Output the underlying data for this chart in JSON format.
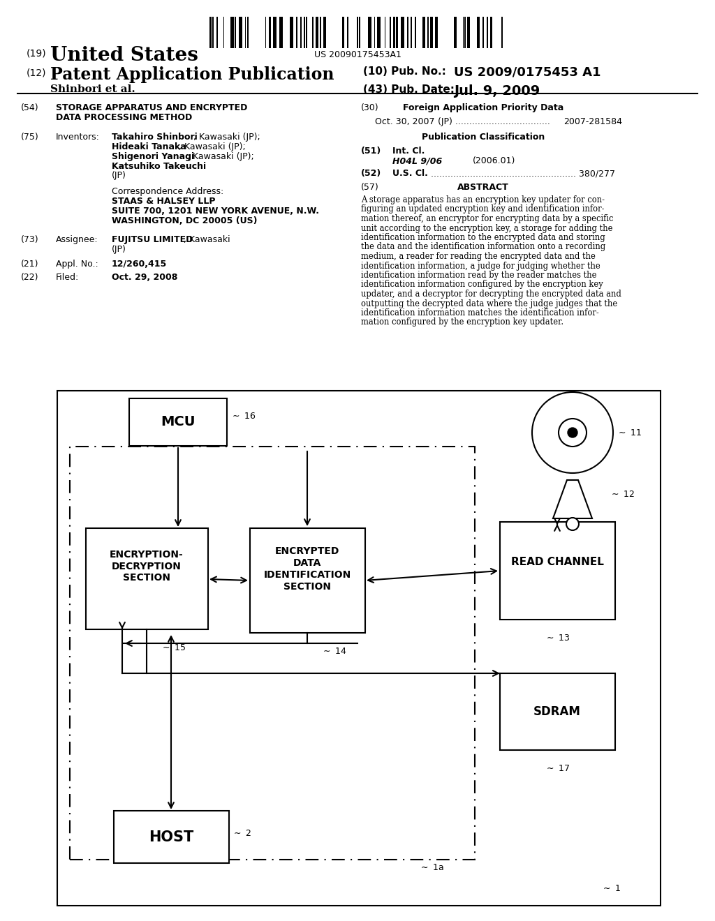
{
  "bg_color": "#ffffff",
  "barcode_text": "US 20090175453A1",
  "abstract_lines": [
    "A storage apparatus has an encryption key updater for con-",
    "figuring an updated encryption key and identification infor-",
    "mation thereof, an encryptor for encrypting data by a specific",
    "unit according to the encryption key, a storage for adding the",
    "identification information to the encrypted data and storing",
    "the data and the identification information onto a recording",
    "medium, a reader for reading the encrypted data and the",
    "identification information, a judge for judging whether the",
    "identification information read by the reader matches the",
    "identification information configured by the encryption key",
    "updater, and a decryptor for decrypting the encrypted data and",
    "outputting the decrypted data where the judge judges that the",
    "identification information matches the identification infor-",
    "mation configured by the encryption key updater."
  ]
}
